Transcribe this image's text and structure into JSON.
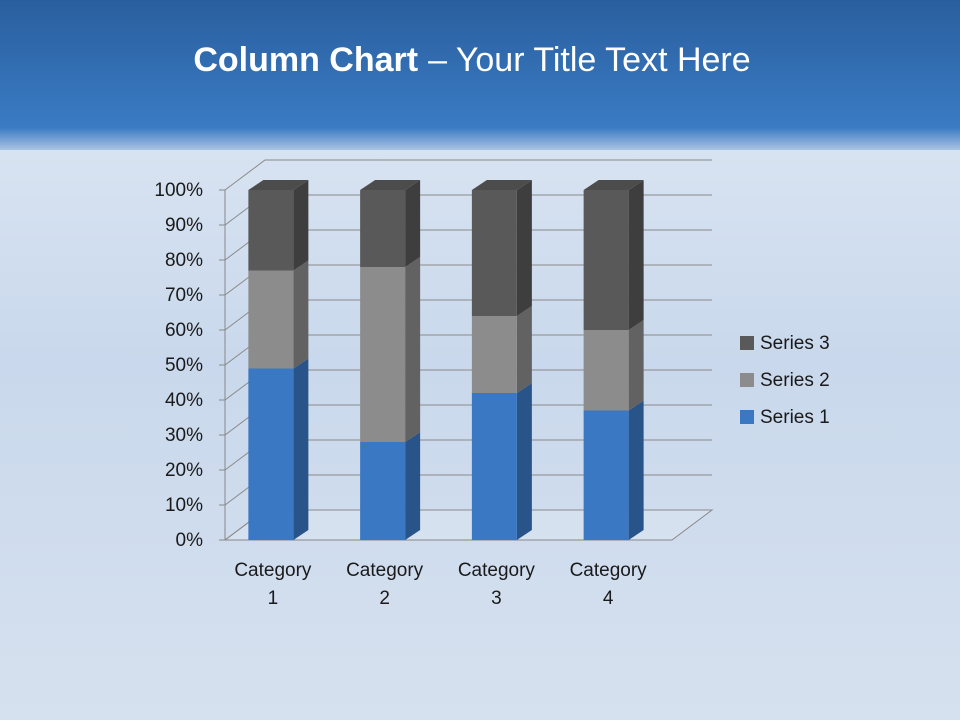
{
  "chart_data": {
    "type": "stacked_bar_3d",
    "title": {
      "bold": "Column Chart",
      "rest": "– Your Title Text Here"
    },
    "categories": [
      "Category 1",
      "Category 2",
      "Category 3",
      "Category 4"
    ],
    "series": [
      {
        "name": "Series 1",
        "color": "#3a78c4",
        "values": [
          49,
          28,
          42,
          37
        ]
      },
      {
        "name": "Series 2",
        "color": "#8c8c8c",
        "values": [
          28,
          50,
          22,
          23
        ]
      },
      {
        "name": "Series 3",
        "color": "#595959",
        "values": [
          23,
          22,
          36,
          40
        ]
      }
    ],
    "ylim": [
      0,
      100
    ],
    "yticks": [
      {
        "value": 0,
        "label": "0%"
      },
      {
        "value": 10,
        "label": "10%"
      },
      {
        "value": 20,
        "label": "20%"
      },
      {
        "value": 30,
        "label": "30%"
      },
      {
        "value": 40,
        "label": "40%"
      },
      {
        "value": 50,
        "label": "50%"
      },
      {
        "value": 60,
        "label": "60%"
      },
      {
        "value": 70,
        "label": "70%"
      },
      {
        "value": 80,
        "label": "80%"
      },
      {
        "value": 90,
        "label": "90%"
      },
      {
        "value": 100,
        "label": "100%"
      }
    ],
    "grid": true,
    "legend": "right"
  }
}
